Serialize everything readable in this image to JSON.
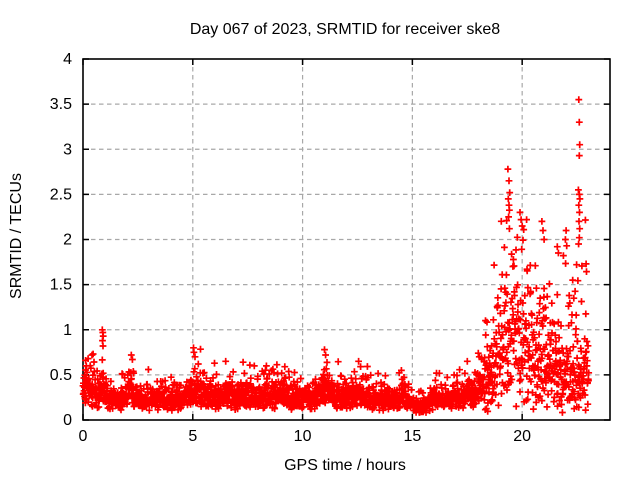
{
  "chart_data": {
    "type": "scatter",
    "title": "Day 067 of 2023, SRMTID for receiver ske8",
    "xlabel": "GPS time / hours",
    "ylabel": "SRMTID / TECUs",
    "xlim": [
      0,
      24
    ],
    "ylim": [
      0,
      4
    ],
    "xticks": [
      0,
      5,
      10,
      15,
      20
    ],
    "xticklabels": [
      "0",
      "5",
      "10",
      "15",
      "20"
    ],
    "yticks": [
      0,
      0.5,
      1,
      1.5,
      2,
      2.5,
      3,
      3.5,
      4
    ],
    "yticklabels": [
      "0",
      "0.5",
      "1",
      "1.5",
      "2",
      "2.5",
      "3",
      "3.5",
      "4"
    ],
    "grid": true,
    "legend": "none",
    "marker": {
      "shape": "plus",
      "color": "#ff0000",
      "size": 6.8,
      "stroke_width": 1.7
    },
    "colors": {
      "axis": "#000000",
      "grid": "#a8a8a8",
      "background": "#ffffff",
      "text": "#000000"
    },
    "series": [
      {
        "name": "SRMTID for receiver ske8",
        "marker": "plus",
        "color": "#ff0000"
      }
    ],
    "data_extent_hours": [
      0,
      23.05
    ],
    "summary": "Dense band of ~2300 epochs near 0.15-0.45 TECU with small wave bumps (to ~0.6-0.8) at hours ~0.9, 2.2, 5.1, 6.5, 11.0, 12.5, 14.5, 16.1, 17.5; quiet dip near hour 15.2; strong activity from ~18.3-23.0 h spreading 0.2-2.8 TECU, peak column ~2.78 at 19.4 h, and an isolated late column at 22.6 h reaching 3.55 TECU.",
    "generator": {
      "seed": 67,
      "t_start": 0,
      "t_end": 23.04,
      "step": 0.01,
      "sigma_base": 0.32,
      "sigma_active": 0.5,
      "active_from_hour": 18.25,
      "low_mix_fraction": 0.15,
      "low_mix_scale": 0.4,
      "min_value": 0.08,
      "max_base": 0.82,
      "max_active": 2.35,
      "mean_curve": [
        [
          0.0,
          0.4
        ],
        [
          0.4,
          0.32
        ],
        [
          0.7,
          0.28
        ],
        [
          0.9,
          0.4
        ],
        [
          1.1,
          0.27
        ],
        [
          1.6,
          0.22
        ],
        [
          2.0,
          0.26
        ],
        [
          2.2,
          0.36
        ],
        [
          2.5,
          0.25
        ],
        [
          3.0,
          0.22
        ],
        [
          3.6,
          0.24
        ],
        [
          4.2,
          0.22
        ],
        [
          4.8,
          0.26
        ],
        [
          5.1,
          0.36
        ],
        [
          5.45,
          0.3
        ],
        [
          5.9,
          0.24
        ],
        [
          6.5,
          0.3
        ],
        [
          7.0,
          0.23
        ],
        [
          7.6,
          0.29
        ],
        [
          8.1,
          0.25
        ],
        [
          8.4,
          0.32
        ],
        [
          8.8,
          0.25
        ],
        [
          9.1,
          0.29
        ],
        [
          9.6,
          0.22
        ],
        [
          10.2,
          0.24
        ],
        [
          10.7,
          0.27
        ],
        [
          11.0,
          0.38
        ],
        [
          11.35,
          0.28
        ],
        [
          11.9,
          0.23
        ],
        [
          12.5,
          0.34
        ],
        [
          12.8,
          0.28
        ],
        [
          13.3,
          0.23
        ],
        [
          13.9,
          0.22
        ],
        [
          14.2,
          0.25
        ],
        [
          14.5,
          0.3
        ],
        [
          14.8,
          0.22
        ],
        [
          15.1,
          0.16
        ],
        [
          15.6,
          0.17
        ],
        [
          16.1,
          0.28
        ],
        [
          16.6,
          0.23
        ],
        [
          17.1,
          0.26
        ],
        [
          17.5,
          0.3
        ],
        [
          17.8,
          0.3
        ],
        [
          18.0,
          0.34
        ],
        [
          18.3,
          0.45
        ],
        [
          18.6,
          0.65
        ],
        [
          18.9,
          0.85
        ],
        [
          19.2,
          1.0
        ],
        [
          19.5,
          1.05
        ],
        [
          19.8,
          1.0
        ],
        [
          20.1,
          0.95
        ],
        [
          20.4,
          0.85
        ],
        [
          20.7,
          0.8
        ],
        [
          21.0,
          0.85
        ],
        [
          21.3,
          0.68
        ],
        [
          21.7,
          0.58
        ],
        [
          22.0,
          0.62
        ],
        [
          22.3,
          0.58
        ],
        [
          22.6,
          0.68
        ],
        [
          23.0,
          0.55
        ]
      ]
    },
    "outliers": [
      [
        0.12,
        0.66
      ],
      [
        0.15,
        0.6
      ],
      [
        0.88,
        1.0
      ],
      [
        0.9,
        0.97
      ],
      [
        0.92,
        0.93
      ],
      [
        0.89,
        0.88
      ],
      [
        0.91,
        0.82
      ],
      [
        2.2,
        0.72
      ],
      [
        2.25,
        0.67
      ],
      [
        5.05,
        0.75
      ],
      [
        5.1,
        0.7
      ],
      [
        6.5,
        0.65
      ],
      [
        7.8,
        0.6
      ],
      [
        8.35,
        0.6
      ],
      [
        9.05,
        0.52
      ],
      [
        11.0,
        0.78
      ],
      [
        11.05,
        0.72
      ],
      [
        12.55,
        0.65
      ],
      [
        14.5,
        0.55
      ],
      [
        16.1,
        0.52
      ],
      [
        17.5,
        0.65
      ],
      [
        18.0,
        0.74
      ],
      [
        18.05,
        0.7
      ],
      [
        19.35,
        2.78
      ],
      [
        19.4,
        2.65
      ],
      [
        19.43,
        2.52
      ],
      [
        19.37,
        2.45
      ],
      [
        19.4,
        2.38
      ],
      [
        19.38,
        2.25
      ],
      [
        19.42,
        2.12
      ],
      [
        19.9,
        2.3
      ],
      [
        19.95,
        2.22
      ],
      [
        20.0,
        2.15
      ],
      [
        20.9,
        2.2
      ],
      [
        20.95,
        2.1
      ],
      [
        21.0,
        2.0
      ],
      [
        21.6,
        1.92
      ],
      [
        21.65,
        1.85
      ],
      [
        22.0,
        2.1
      ],
      [
        21.97,
        2.0
      ],
      [
        22.03,
        1.93
      ],
      [
        22.3,
        1.55
      ],
      [
        22.35,
        1.35
      ],
      [
        22.58,
        3.55
      ],
      [
        22.6,
        3.3
      ],
      [
        22.62,
        3.05
      ],
      [
        22.6,
        2.93
      ],
      [
        22.56,
        2.55
      ],
      [
        22.6,
        2.5
      ],
      [
        22.63,
        2.45
      ],
      [
        22.58,
        2.38
      ],
      [
        22.61,
        2.3
      ],
      [
        22.59,
        2.2
      ],
      [
        22.62,
        2.12
      ],
      [
        22.6,
        2.02
      ],
      [
        22.57,
        1.95
      ],
      [
        22.85,
        0.9
      ],
      [
        22.9,
        0.75
      ],
      [
        22.95,
        0.6
      ]
    ]
  }
}
